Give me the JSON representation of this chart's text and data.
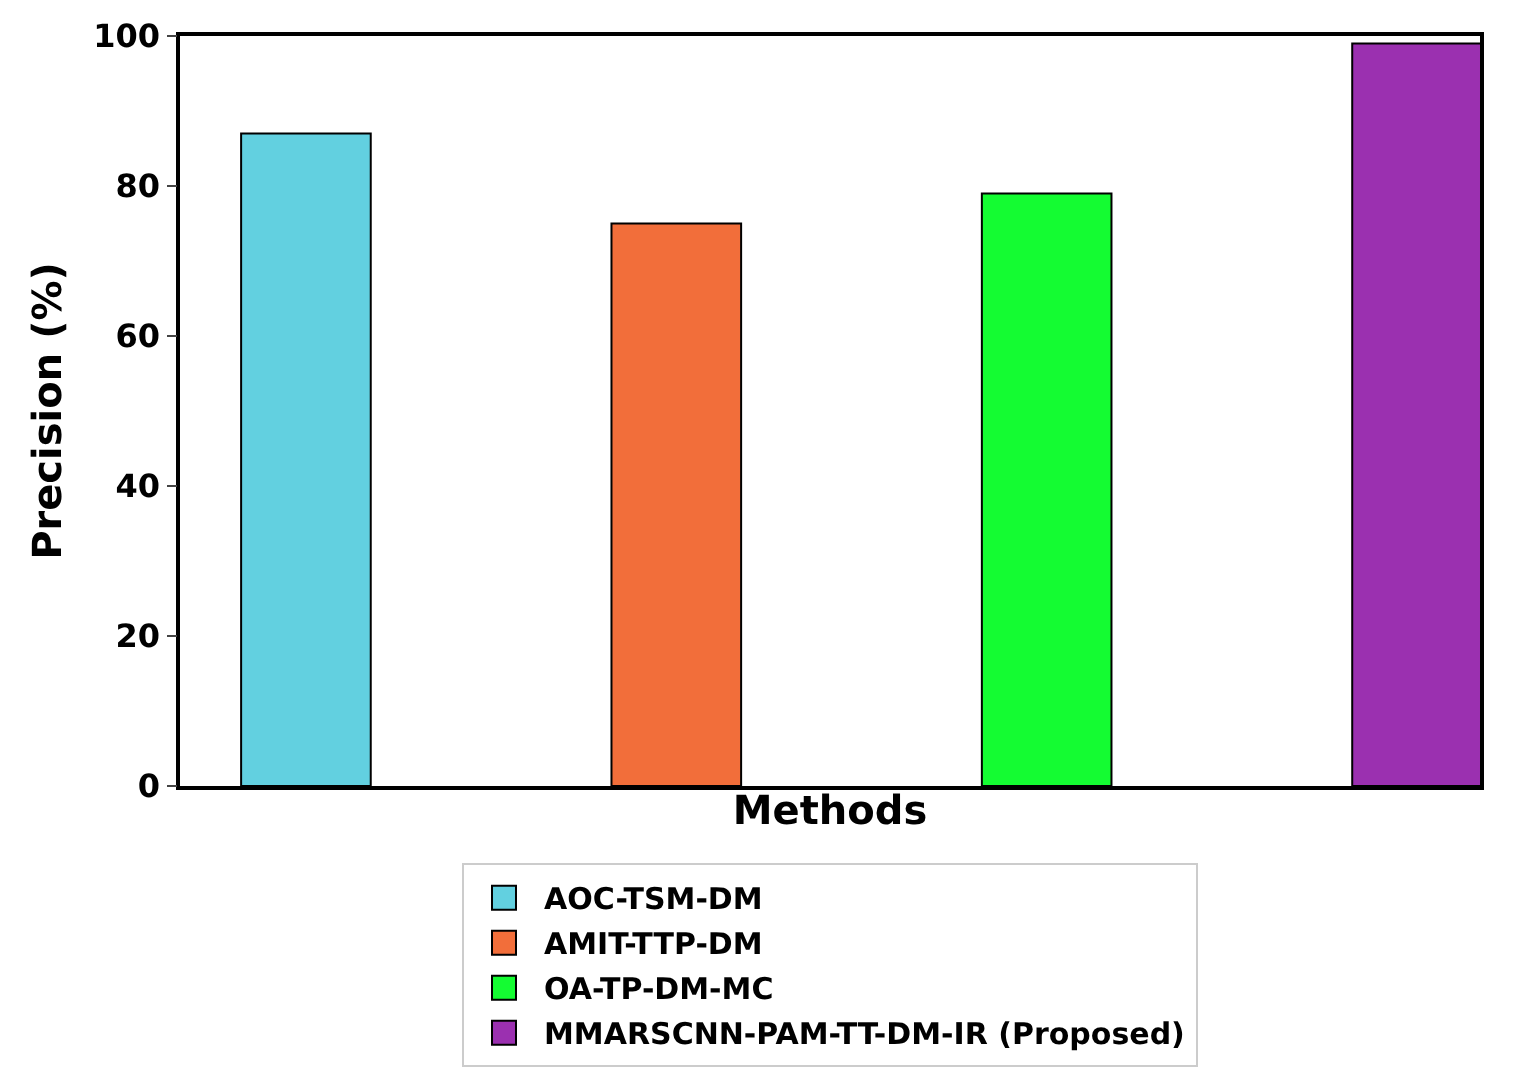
{
  "chart_data": {
    "type": "bar",
    "xlabel": "Methods",
    "ylabel": "Precision (%)",
    "categories": [
      null,
      null,
      null,
      null
    ],
    "series": [
      {
        "name": "AOC-TSM-DM",
        "color": "#62d0e0",
        "values": [
          87,
          null,
          null,
          null
        ]
      },
      {
        "name": "AMIT-TTP-DM",
        "color": "#f26e3a",
        "values": [
          null,
          75,
          null,
          null
        ]
      },
      {
        "name": "OA-TP-DM-MC",
        "color": "#14fc32",
        "values": [
          null,
          null,
          79,
          null
        ]
      },
      {
        "name": "MMARSCNN-PAM-TT-DM-IR (Proposed)",
        "color": "#9b30b0",
        "values": [
          null,
          null,
          null,
          99
        ]
      }
    ],
    "ylim": [
      0,
      100
    ],
    "yticks": [
      0,
      20,
      40,
      60,
      80,
      100
    ],
    "grid": false,
    "legend": "bottom",
    "tick_labels": "y"
  }
}
